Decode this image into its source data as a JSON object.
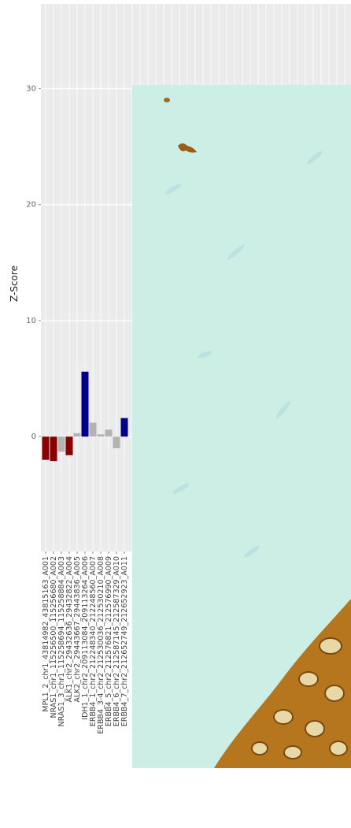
{
  "chart_data": {
    "type": "bar",
    "y_label": "Z-Score",
    "categories": [
      "MPL1_2_chr1_43814982_43815163_A001",
      "NRAS1_chr1_115256500_115256680_A002",
      "NRAS1_3_chr1_115258694_115258884_A003",
      "ALK1_chr2_29432636_29432822_A004",
      "ALK2_chr2_29443667_29443836_A005",
      "IDH1_1_chr2_209113084_209113264_A006",
      "ERBB4_1_chr2_212248340_212248560_A007",
      "ERBB4_3-4_chr2_212530036_212530210_A008",
      "ERBB4_5_chr2_212576821_212576990_A009",
      "ERBB4_6_chr2_212587145_212587329_A010",
      "ERBB4_7_chr2_212652749_212652923_A011"
    ],
    "values": [
      -2.0,
      -2.1,
      -1.3,
      -1.6,
      0.3,
      5.6,
      1.2,
      0.2,
      0.6,
      -1.0,
      1.6
    ],
    "colors": [
      "#8b0000",
      "#8b0000",
      "#b3b3b3",
      "#8b0000",
      "#b3b3b3",
      "#00008b",
      "#b3b3b3",
      "#b3b3b3",
      "#b3b3b3",
      "#b3b3b3",
      "#00008b"
    ],
    "ylim": [
      -9.9,
      37.3
    ],
    "yticks": [
      0,
      10,
      20,
      30
    ],
    "grid": true
  }
}
